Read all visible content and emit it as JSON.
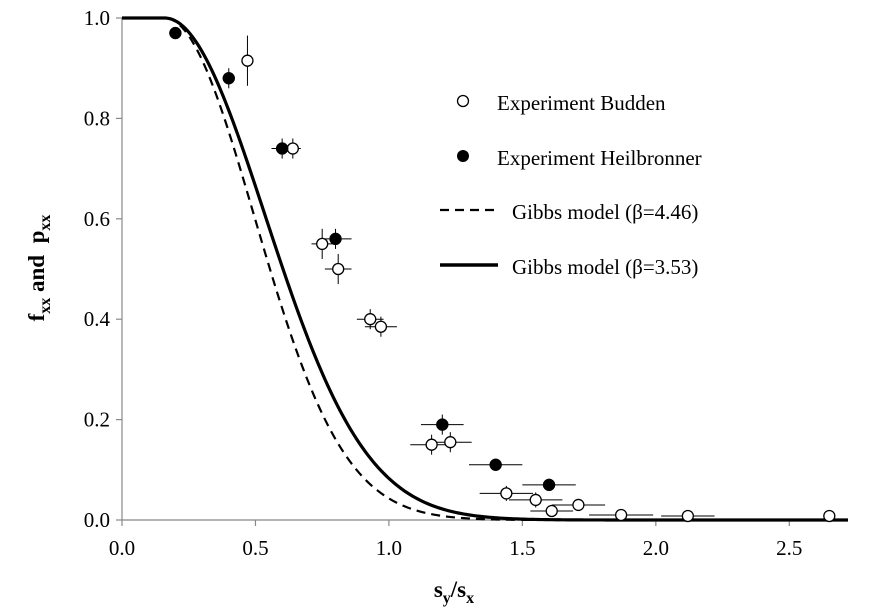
{
  "chart_data": {
    "type": "scatter",
    "xlabel": {
      "main": "s",
      "sub1": "y",
      "sep": "/s",
      "sub2": "x"
    },
    "ylabel": {
      "p1": "f",
      "s1": "xx",
      "mid": " and  ",
      "p2": "p",
      "s2": "xx"
    },
    "xlim": [
      0.0,
      2.72
    ],
    "ylim": [
      0.0,
      1.0
    ],
    "xticks": [
      "0.0",
      "0.5",
      "1.0",
      "1.5",
      "2.0",
      "2.5"
    ],
    "xtick_values": [
      0.0,
      0.5,
      1.0,
      1.5,
      2.0,
      2.5
    ],
    "yticks": [
      "0.0",
      "0.2",
      "0.4",
      "0.6",
      "0.8",
      "1.0"
    ],
    "ytick_values": [
      0.0,
      0.2,
      0.4,
      0.6,
      0.8,
      1.0
    ],
    "legend_position": "top-right",
    "series": [
      {
        "name": "Experiment Budden",
        "kind": "open-markers",
        "points": [
          {
            "x": 0.47,
            "y": 0.915,
            "xerr": 0.0,
            "yerr": 0.05
          },
          {
            "x": 0.64,
            "y": 0.74,
            "xerr": 0.03,
            "yerr": 0.02
          },
          {
            "x": 0.75,
            "y": 0.55,
            "xerr": 0.04,
            "yerr": 0.03
          },
          {
            "x": 0.81,
            "y": 0.5,
            "xerr": 0.05,
            "yerr": 0.03
          },
          {
            "x": 0.93,
            "y": 0.4,
            "xerr": 0.05,
            "yerr": 0.02
          },
          {
            "x": 0.97,
            "y": 0.385,
            "xerr": 0.06,
            "yerr": 0.02
          },
          {
            "x": 1.16,
            "y": 0.15,
            "xerr": 0.08,
            "yerr": 0.02
          },
          {
            "x": 1.23,
            "y": 0.155,
            "xerr": 0.08,
            "yerr": 0.02
          },
          {
            "x": 1.44,
            "y": 0.053,
            "xerr": 0.1,
            "yerr": 0.015
          },
          {
            "x": 1.55,
            "y": 0.04,
            "xerr": 0.1,
            "yerr": 0.015
          },
          {
            "x": 1.61,
            "y": 0.018,
            "xerr": 0.08,
            "yerr": 0.01
          },
          {
            "x": 1.71,
            "y": 0.03,
            "xerr": 0.1,
            "yerr": 0.01
          },
          {
            "x": 1.87,
            "y": 0.01,
            "xerr": 0.12,
            "yerr": 0.005
          },
          {
            "x": 2.12,
            "y": 0.008,
            "xerr": 0.1,
            "yerr": 0.005
          },
          {
            "x": 2.65,
            "y": 0.008,
            "xerr": 0.0,
            "yerr": 0.005
          }
        ]
      },
      {
        "name": "Experiment Heilbronner",
        "kind": "filled-markers",
        "points": [
          {
            "x": 0.2,
            "y": 0.97,
            "xerr": 0.0,
            "yerr": 0.01
          },
          {
            "x": 0.4,
            "y": 0.88,
            "xerr": 0.0,
            "yerr": 0.02
          },
          {
            "x": 0.6,
            "y": 0.74,
            "xerr": 0.04,
            "yerr": 0.02
          },
          {
            "x": 0.8,
            "y": 0.56,
            "xerr": 0.06,
            "yerr": 0.02
          },
          {
            "x": 1.2,
            "y": 0.19,
            "xerr": 0.08,
            "yerr": 0.02
          },
          {
            "x": 1.4,
            "y": 0.11,
            "xerr": 0.1,
            "yerr": 0.01
          },
          {
            "x": 1.6,
            "y": 0.07,
            "xerr": 0.1,
            "yerr": 0.01
          }
        ]
      },
      {
        "name": "Gibbs model (β=4.46)",
        "kind": "dashed-line",
        "beta": 4.46,
        "x0": 0.16
      },
      {
        "name": "Gibbs model (β=3.53)",
        "kind": "solid-line",
        "beta": 3.53,
        "x0": 0.16
      }
    ]
  }
}
